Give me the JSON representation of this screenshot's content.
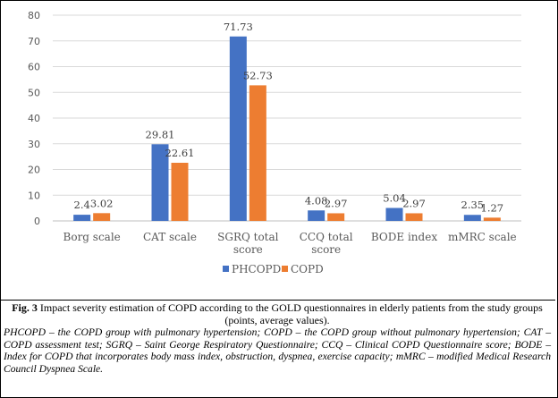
{
  "chart_data": {
    "type": "bar",
    "categories": [
      [
        "Borg scale"
      ],
      [
        "CAT scale"
      ],
      [
        "SGRQ total",
        "score"
      ],
      [
        "CCQ total",
        "score"
      ],
      [
        "BODE index"
      ],
      [
        "mMRC scale"
      ]
    ],
    "series": [
      {
        "name": "PHCOPD",
        "color": "#4472C4",
        "values": [
          2.4,
          29.81,
          71.73,
          4.08,
          5.04,
          2.35
        ],
        "labels": [
          "2.4",
          "29.81",
          "71.73",
          "4.08",
          "5.04",
          "2.35"
        ]
      },
      {
        "name": "COPD",
        "color": "#ED7D31",
        "values": [
          3.02,
          22.61,
          52.73,
          2.97,
          2.97,
          1.27
        ],
        "labels": [
          "3.02",
          "22.61",
          "52.73",
          "2.97",
          "2.97",
          "1.27"
        ]
      }
    ],
    "ylim": [
      0,
      80
    ],
    "yticks": [
      0,
      10,
      20,
      30,
      40,
      50,
      60,
      70,
      80
    ],
    "grid": true,
    "legend": "bottom"
  },
  "caption": {
    "fig_label": "Fig. 3",
    "title": " Impact severity estimation of COPD according to the GOLD questionnaires in elderly patients from the study groups (points, average values).",
    "notes": "PHCOPD – the COPD group with pulmonary hypertension; COPD – the COPD group without pulmonary hypertension; CAT – COPD assessment test; SGRQ – Saint George Respiratory Questionnaire; CCQ – Clinical COPD Questionnaire score; BODE – Index for COPD that incorporates body mass index, obstruction, dyspnea, exercise capacity; mMRC – modified Medical Research Council Dyspnea Scale."
  }
}
